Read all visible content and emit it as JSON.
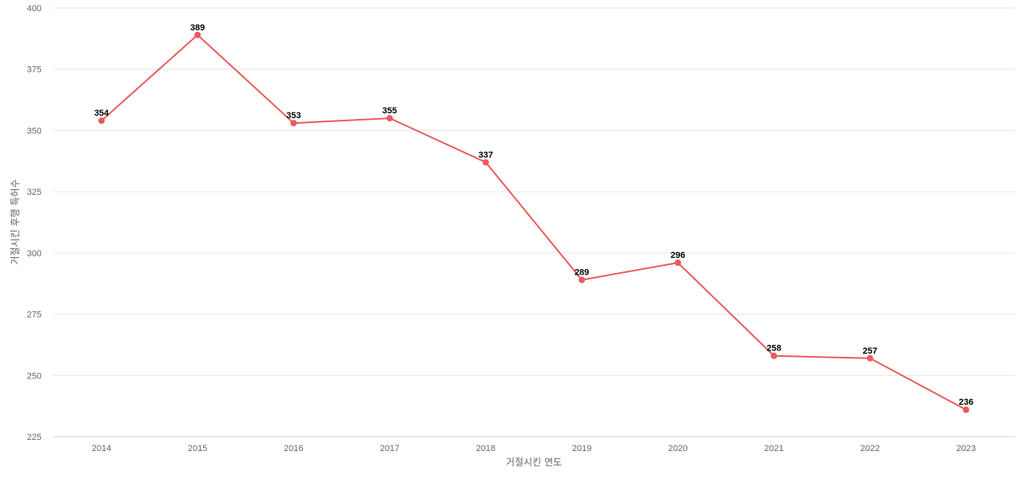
{
  "chart_data": {
    "type": "line",
    "title": "",
    "xlabel": "거절시킨 연도",
    "ylabel": "거절시킨 후행 특허수",
    "x": [
      "2014",
      "2015",
      "2016",
      "2017",
      "2018",
      "2019",
      "2020",
      "2021",
      "2022",
      "2023"
    ],
    "series": [
      {
        "values": [
          354,
          389,
          353,
          355,
          337,
          289,
          296,
          258,
          257,
          236
        ],
        "color": "#e85c5c"
      }
    ],
    "ylim": [
      225,
      400
    ],
    "yticks": [
      225,
      250,
      275,
      300,
      325,
      350,
      375,
      400
    ],
    "grid": true,
    "legend": "none",
    "data_labels": true
  }
}
